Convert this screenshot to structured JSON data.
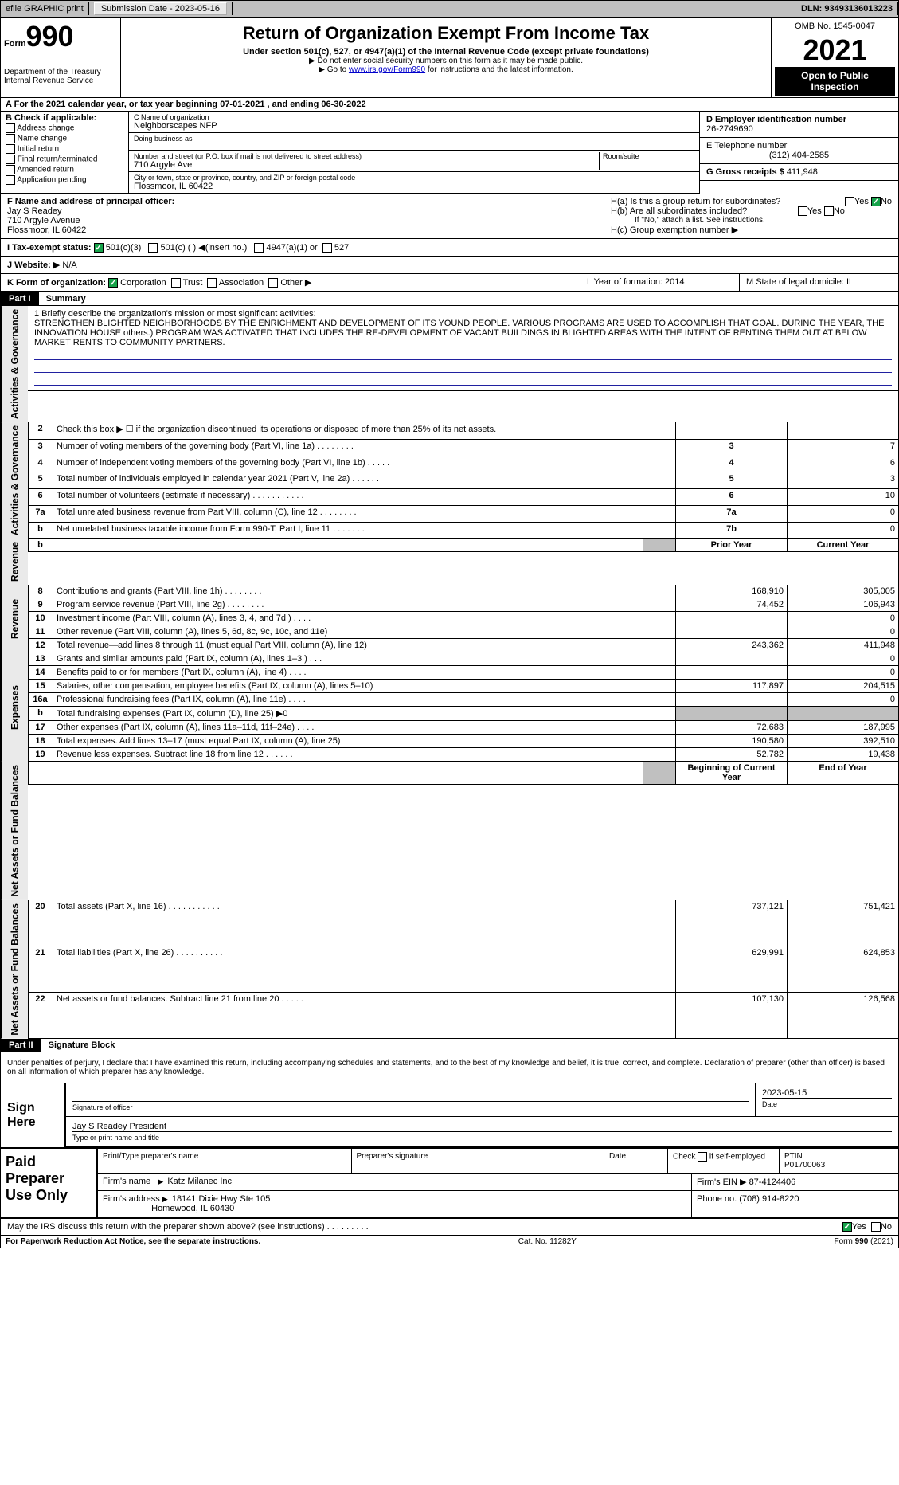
{
  "topbar": {
    "efile": "efile GRAPHIC print",
    "submission_label": "Submission Date - 2023-05-16",
    "dln_label": "DLN: 93493136013223"
  },
  "header": {
    "form_word": "Form",
    "form_num": "990",
    "dept": "Department of the Treasury",
    "irs": "Internal Revenue Service",
    "title": "Return of Organization Exempt From Income Tax",
    "subtitle": "Under section 501(c), 527, or 4947(a)(1) of the Internal Revenue Code (except private foundations)",
    "note1": "Do not enter social security numbers on this form as it may be made public.",
    "note2_pre": "Go to ",
    "note2_link": "www.irs.gov/Form990",
    "note2_post": " for instructions and the latest information.",
    "omb": "OMB No. 1545-0047",
    "year": "2021",
    "open": "Open to Public Inspection"
  },
  "row_a": "For the 2021 calendar year, or tax year beginning 07-01-2021    , and ending 06-30-2022",
  "box_b": {
    "title": "B Check if applicable:",
    "opts": [
      "Address change",
      "Name change",
      "Initial return",
      "Final return/terminated",
      "Amended return",
      "Application pending"
    ]
  },
  "box_c": {
    "name_lbl": "C Name of organization",
    "name": "Neighborscapes NFP",
    "dba_lbl": "Doing business as",
    "dba": "",
    "addr_lbl": "Number and street (or P.O. box if mail is not delivered to street address)",
    "room_lbl": "Room/suite",
    "addr": "710 Argyle Ave",
    "city_lbl": "City or town, state or province, country, and ZIP or foreign postal code",
    "city": "Flossmoor, IL  60422"
  },
  "box_d": {
    "lbl": "D Employer identification number",
    "val": "26-2749690"
  },
  "box_e": {
    "lbl": "E Telephone number",
    "val": "(312) 404-2585"
  },
  "box_g": {
    "lbl": "G Gross receipts $",
    "val": "411,948"
  },
  "box_f": {
    "lbl": "F  Name and address of principal officer:",
    "name": "Jay S Readey",
    "addr1": "710 Argyle Avenue",
    "addr2": "Flossmoor, IL  60422"
  },
  "box_h": {
    "ha": "H(a)  Is this a group return for subordinates?",
    "hb": "H(b)  Are all subordinates included?",
    "hb_note": "If \"No,\" attach a list. See instructions.",
    "hc": "H(c)  Group exemption number",
    "yes": "Yes",
    "no": "No"
  },
  "row_i": {
    "lbl": "I   Tax-exempt status:",
    "o1": "501(c)(3)",
    "o2": "501(c) (   )",
    "o2b": "(insert no.)",
    "o3": "4947(a)(1) or",
    "o4": "527"
  },
  "row_j": {
    "lbl": "J   Website:",
    "val": "N/A"
  },
  "row_k": {
    "lbl": "K Form of organization:",
    "opts": [
      "Corporation",
      "Trust",
      "Association",
      "Other"
    ],
    "l": "L Year of formation: 2014",
    "m": "M State of legal domicile: IL"
  },
  "part1": {
    "hdr": "Part I",
    "title": "Summary"
  },
  "mission": {
    "lbl": "1 Briefly describe the organization's mission or most significant activities:",
    "text": "STRENGTHEN BLIGHTED NEIGHBORHOODS BY THE ENRICHMENT AND DEVELOPMENT OF ITS YOUND PEOPLE. VARIOUS PROGRAMS ARE USED TO ACCOMPLISH THAT GOAL. DURING THE YEAR, THE INNOVATION HOUSE others.) PROGRAM WAS ACTIVATED THAT INCLUDES THE RE-DEVELOPMENT OF VACANT BUILDINGS IN BLIGHTED AREAS WITH THE INTENT OF RENTING THEM OUT AT BELOW MARKET RENTS TO COMMUNITY PARTNERS."
  },
  "lines_gov": [
    {
      "n": "2",
      "d": "Check this box ▶ ☐  if the organization discontinued its operations or disposed of more than 25% of its net assets.",
      "ln": "",
      "v": ""
    },
    {
      "n": "3",
      "d": "Number of voting members of the governing body (Part VI, line 1a)   .     .     .     .     .     .     .     .",
      "ln": "3",
      "v": "7"
    },
    {
      "n": "4",
      "d": "Number of independent voting members of the governing body (Part VI, line 1b)   .     .     .     .     .",
      "ln": "4",
      "v": "6"
    },
    {
      "n": "5",
      "d": "Total number of individuals employed in calendar year 2021 (Part V, line 2a)   .     .     .     .     .     .",
      "ln": "5",
      "v": "3"
    },
    {
      "n": "6",
      "d": "Total number of volunteers (estimate if necessary)   .     .     .     .     .     .     .     .     .     .     .",
      "ln": "6",
      "v": "10"
    },
    {
      "n": "7a",
      "d": "Total unrelated business revenue from Part VIII, column (C), line 12   .     .     .     .     .     .     .     .",
      "ln": "7a",
      "v": "0"
    },
    {
      "n": "b",
      "d": "Net unrelated business taxable income from Form 990-T, Part I, line 11   .     .     .     .     .     .     .",
      "ln": "7b",
      "v": "0"
    }
  ],
  "rev_hdr": {
    "b": "b",
    "py": "Prior Year",
    "cy": "Current Year"
  },
  "lines_rev": [
    {
      "n": "8",
      "d": "Contributions and grants (Part VIII, line 1h)   .     .     .     .     .     .     .     .",
      "py": "168,910",
      "cy": "305,005"
    },
    {
      "n": "9",
      "d": "Program service revenue (Part VIII, line 2g)   .     .     .     .     .     .     .     .",
      "py": "74,452",
      "cy": "106,943"
    },
    {
      "n": "10",
      "d": "Investment income (Part VIII, column (A), lines 3, 4, and 7d )   .     .     .     .",
      "py": "",
      "cy": "0"
    },
    {
      "n": "11",
      "d": "Other revenue (Part VIII, column (A), lines 5, 6d, 8c, 9c, 10c, and 11e)",
      "py": "",
      "cy": "0"
    },
    {
      "n": "12",
      "d": "Total revenue—add lines 8 through 11 (must equal Part VIII, column (A), line 12)",
      "py": "243,362",
      "cy": "411,948"
    }
  ],
  "lines_exp": [
    {
      "n": "13",
      "d": "Grants and similar amounts paid (Part IX, column (A), lines 1–3 )   .     .     .",
      "py": "",
      "cy": "0"
    },
    {
      "n": "14",
      "d": "Benefits paid to or for members (Part IX, column (A), line 4)   .     .     .     .",
      "py": "",
      "cy": "0"
    },
    {
      "n": "15",
      "d": "Salaries, other compensation, employee benefits (Part IX, column (A), lines 5–10)",
      "py": "117,897",
      "cy": "204,515"
    },
    {
      "n": "16a",
      "d": "Professional fundraising fees (Part IX, column (A), line 11e)   .     .     .     .",
      "py": "",
      "cy": "0"
    },
    {
      "n": "b",
      "d": "Total fundraising expenses (Part IX, column (D), line 25) ▶0",
      "py": "shade",
      "cy": "shade"
    },
    {
      "n": "17",
      "d": "Other expenses (Part IX, column (A), lines 11a–11d, 11f–24e)   .     .     .     .",
      "py": "72,683",
      "cy": "187,995"
    },
    {
      "n": "18",
      "d": "Total expenses. Add lines 13–17 (must equal Part IX, column (A), line 25)",
      "py": "190,580",
      "cy": "392,510"
    },
    {
      "n": "19",
      "d": "Revenue less expenses. Subtract line 18 from line 12   .     .     .     .     .     .",
      "py": "52,782",
      "cy": "19,438"
    }
  ],
  "net_hdr": {
    "py": "Beginning of Current Year",
    "cy": "End of Year"
  },
  "lines_net": [
    {
      "n": "20",
      "d": "Total assets (Part X, line 16)   .     .     .     .     .     .     .     .     .     .     .",
      "py": "737,121",
      "cy": "751,421"
    },
    {
      "n": "21",
      "d": "Total liabilities (Part X, line 26)   .     .     .     .     .     .     .     .     .     .",
      "py": "629,991",
      "cy": "624,853"
    },
    {
      "n": "22",
      "d": "Net assets or fund balances. Subtract line 21 from line 20   .     .     .     .     .",
      "py": "107,130",
      "cy": "126,568"
    }
  ],
  "vtabs": {
    "gov": "Activities & Governance",
    "rev": "Revenue",
    "exp": "Expenses",
    "net": "Net Assets or Fund Balances"
  },
  "part2": {
    "hdr": "Part II",
    "title": "Signature Block"
  },
  "penalty": "Under penalties of perjury, I declare that I have examined this return, including accompanying schedules and statements, and to the best of my knowledge and belief, it is true, correct, and complete. Declaration of preparer (other than officer) is based on all information of which preparer has any knowledge.",
  "sign": {
    "lbl": "Sign Here",
    "sig_lbl": "Signature of officer",
    "date": "2023-05-15",
    "date_lbl": "Date",
    "name": "Jay S Readey  President",
    "name_lbl": "Type or print name and title"
  },
  "prep": {
    "lbl": "Paid Preparer Use Only",
    "h1": "Print/Type preparer's name",
    "h2": "Preparer's signature",
    "h3": "Date",
    "h4_pre": "Check",
    "h4_post": "if self-employed",
    "h5_lbl": "PTIN",
    "h5": "P01700063",
    "firm_lbl": "Firm's name",
    "firm": "Katz Milanec Inc",
    "ein_lbl": "Firm's EIN",
    "ein": "87-4124406",
    "addr_lbl": "Firm's address",
    "addr1": "18141 Dixie Hwy Ste 105",
    "addr2": "Homewood, IL  60430",
    "phone_lbl": "Phone no.",
    "phone": "(708) 914-8220"
  },
  "discuss": {
    "q": "May the IRS discuss this return with the preparer shown above? (see instructions)   .     .     .     .     .     .     .     .     .",
    "yes": "Yes",
    "no": "No"
  },
  "footer": {
    "pra": "For Paperwork Reduction Act Notice, see the separate instructions.",
    "cat": "Cat. No. 11282Y",
    "form": "Form 990 (2021)"
  }
}
